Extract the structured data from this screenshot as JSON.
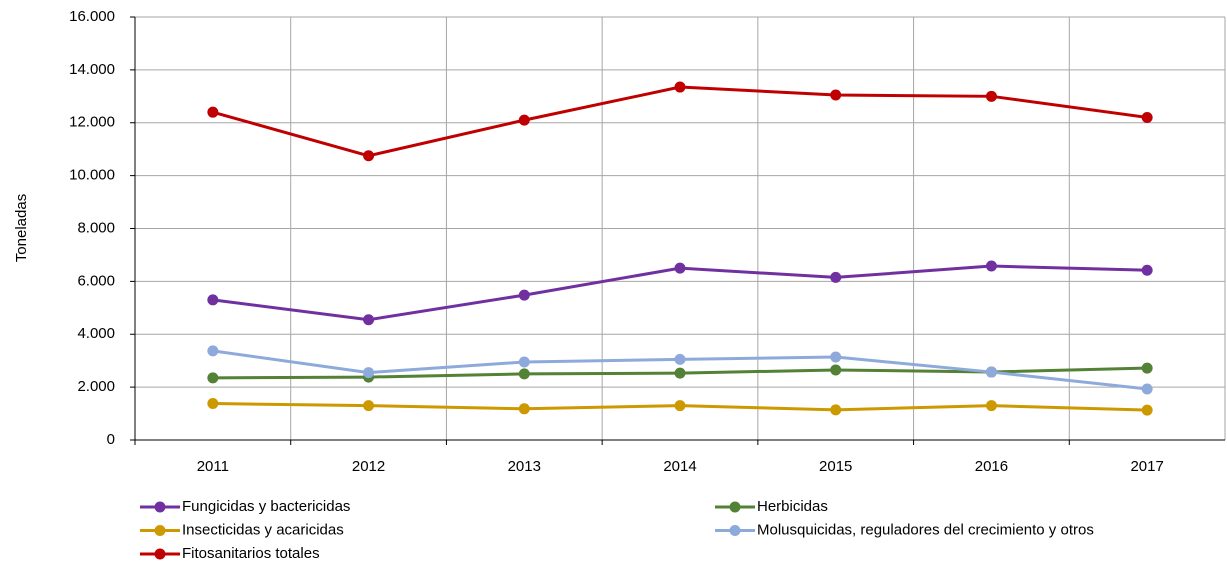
{
  "chart_data": {
    "type": "line",
    "ylabel": "Toneladas",
    "categories": [
      "2011",
      "2012",
      "2013",
      "2014",
      "2015",
      "2016",
      "2017"
    ],
    "series": [
      {
        "name": "Fungicidas y bactericidas",
        "color": "#7030a0",
        "values": [
          5300,
          4550,
          5480,
          6500,
          6150,
          6580,
          6420
        ]
      },
      {
        "name": "Herbicidas",
        "color": "#538135",
        "values": [
          2350,
          2380,
          2500,
          2530,
          2650,
          2570,
          2720
        ]
      },
      {
        "name": "Insecticidas y acaricidas",
        "color": "#cc9900",
        "values": [
          1380,
          1300,
          1180,
          1300,
          1140,
          1300,
          1130
        ]
      },
      {
        "name": "Molusquicidas, reguladores del crecimiento y otros",
        "color": "#8eaadb",
        "values": [
          3370,
          2550,
          2950,
          3050,
          3140,
          2570,
          1930
        ]
      },
      {
        "name": "Fitosanitarios totales",
        "color": "#c00000",
        "values": [
          12400,
          10750,
          12100,
          13350,
          13050,
          13000,
          12200
        ]
      }
    ],
    "ylim": [
      0,
      16000
    ],
    "yticks": [
      0,
      {
        "value": 2000,
        "label": "2.000"
      },
      {
        "value": 4000,
        "label": "4.000"
      },
      {
        "value": 6000,
        "label": "6.000"
      },
      {
        "value": 8000,
        "label": "8.000"
      },
      {
        "value": 10000,
        "label": "10.000"
      },
      {
        "value": 12000,
        "label": "12.000"
      },
      {
        "value": 14000,
        "label": "14.000"
      },
      {
        "value": 16000,
        "label": "16.000"
      }
    ],
    "grid": true,
    "legend": "bottom"
  }
}
